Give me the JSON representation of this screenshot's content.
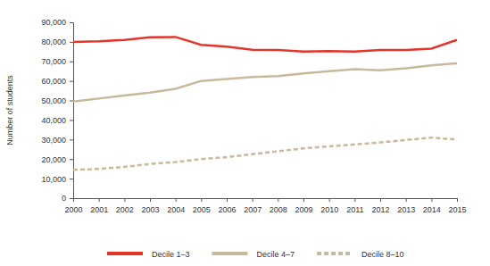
{
  "chart_data": {
    "type": "line",
    "y_label": "Number of students",
    "x": [
      2000,
      2001,
      2002,
      2003,
      2004,
      2005,
      2006,
      2007,
      2008,
      2009,
      2010,
      2011,
      2012,
      2013,
      2014,
      2015
    ],
    "xlim": [
      2000,
      2015
    ],
    "xticks": [
      2000,
      2001,
      2002,
      2003,
      2004,
      2005,
      2006,
      2007,
      2008,
      2009,
      2010,
      2011,
      2012,
      2013,
      2014,
      2015
    ],
    "ylim": [
      0,
      90000
    ],
    "yticks": [
      0,
      {
        "value": 10000,
        "label": "10,000"
      },
      {
        "value": 20000,
        "label": "20,000"
      },
      {
        "value": 30000,
        "label": "30,000"
      },
      {
        "value": 40000,
        "label": "40,000"
      },
      {
        "value": 50000,
        "label": "50,000"
      },
      {
        "value": 60000,
        "label": "60,000"
      },
      {
        "value": 70000,
        "label": "70,000"
      },
      {
        "value": 80000,
        "label": "80,000"
      },
      {
        "value": 90000,
        "label": "90,000"
      }
    ],
    "grid": false,
    "legend": "bottom",
    "series": [
      {
        "name": "Decile 1–3",
        "color": "#e4352b",
        "line_style": "solid",
        "values": [
          80000,
          80300,
          81000,
          82300,
          82500,
          78500,
          77500,
          76000,
          75800,
          75000,
          75300,
          75000,
          75800,
          75800,
          76500,
          81000
        ]
      },
      {
        "name": "Decile 4–7",
        "color": "#c9b99b",
        "line_style": "solid",
        "values": [
          49500,
          51000,
          52500,
          54000,
          56000,
          60000,
          61000,
          62000,
          62500,
          63800,
          65000,
          66000,
          65500,
          66500,
          68000,
          69000
        ]
      },
      {
        "name": "Decile 8–10",
        "color": "#c9b99b",
        "line_style": "dashed",
        "values": [
          14500,
          15000,
          16000,
          17500,
          18500,
          20000,
          21000,
          22500,
          24000,
          25500,
          26500,
          27500,
          28500,
          29800,
          31000,
          30000
        ]
      }
    ]
  }
}
